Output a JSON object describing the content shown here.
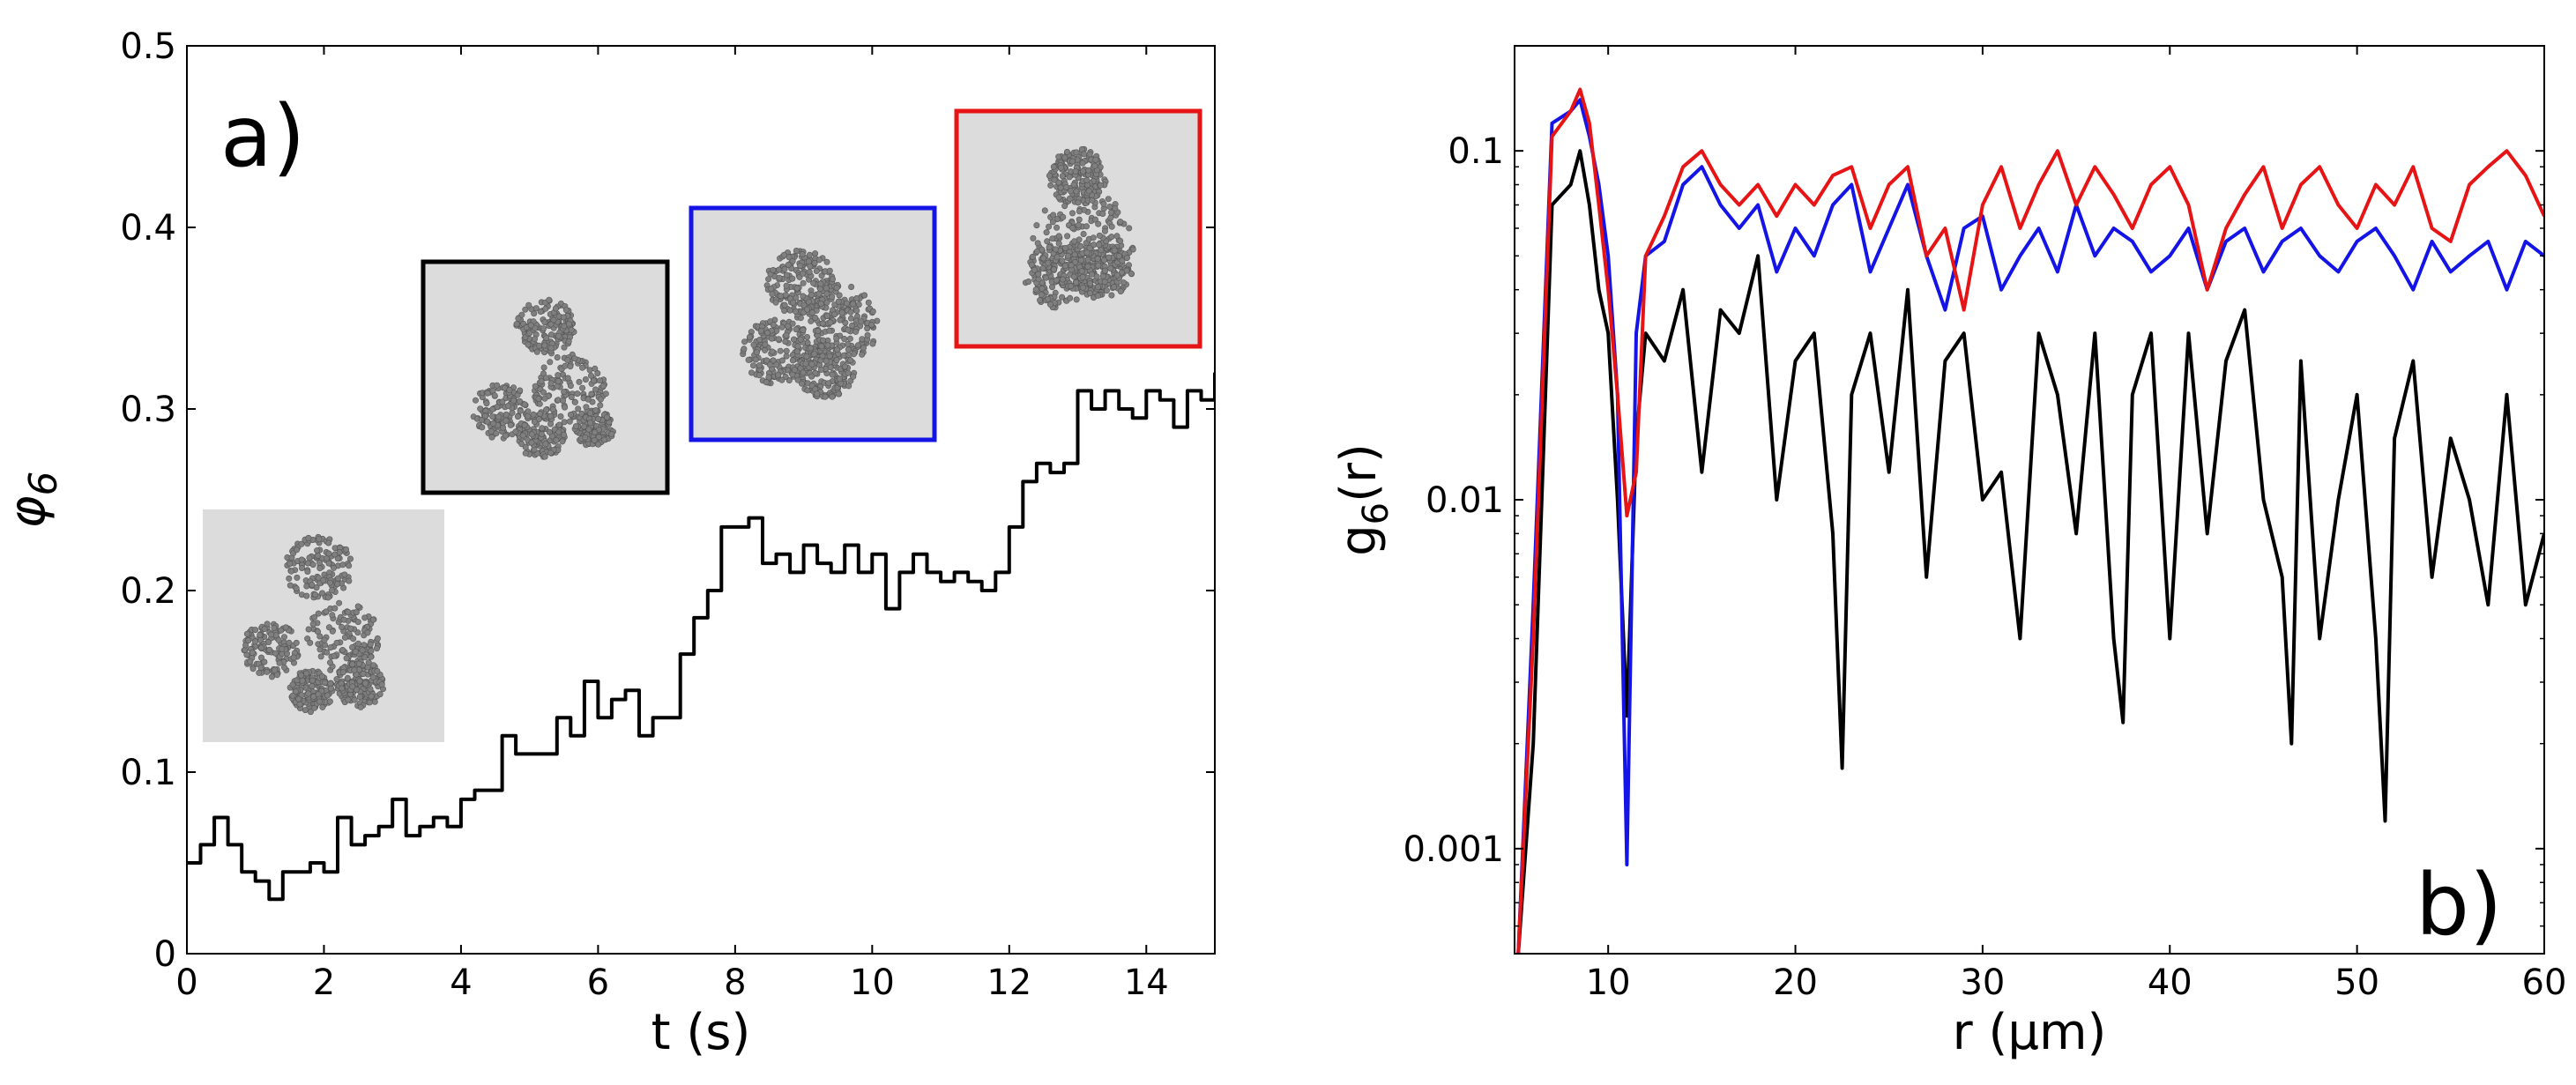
{
  "chart_data": [
    {
      "type": "line",
      "panel_label": "a)",
      "xlabel": "t (s)",
      "ylabel": "φ",
      "ylabel_sub": "6",
      "xlim": [
        0,
        15
      ],
      "ylim": [
        0,
        0.5
      ],
      "xticks": [
        0,
        2,
        4,
        6,
        8,
        10,
        12,
        14
      ],
      "yticks": [
        0,
        0.1,
        0.2,
        0.3,
        0.4,
        0.5
      ],
      "ytick_labels": [
        "0",
        "0.1",
        "0.2",
        "0.3",
        "0.4",
        "0.5"
      ],
      "grid": false,
      "colors": {
        "series": "#000000"
      },
      "series": [
        {
          "color": "#000000",
          "step": true,
          "x": [
            0,
            0.2,
            0.4,
            0.6,
            0.8,
            1.0,
            1.2,
            1.4,
            1.6,
            1.8,
            2.0,
            2.2,
            2.4,
            2.6,
            2.8,
            3.0,
            3.2,
            3.4,
            3.6,
            3.8,
            4.0,
            4.2,
            4.4,
            4.6,
            4.8,
            5.0,
            5.2,
            5.4,
            5.6,
            5.8,
            6.0,
            6.2,
            6.4,
            6.6,
            6.8,
            7.0,
            7.2,
            7.4,
            7.6,
            7.8,
            8.0,
            8.2,
            8.4,
            8.6,
            8.8,
            9.0,
            9.2,
            9.4,
            9.6,
            9.8,
            10.0,
            10.2,
            10.4,
            10.6,
            10.8,
            11.0,
            11.2,
            11.4,
            11.6,
            11.8,
            12.0,
            12.2,
            12.4,
            12.6,
            12.8,
            13.0,
            13.2,
            13.4,
            13.6,
            13.8,
            14.0,
            14.2,
            14.4,
            14.6,
            14.8,
            15.0
          ],
          "y": [
            0.05,
            0.06,
            0.075,
            0.06,
            0.045,
            0.04,
            0.03,
            0.045,
            0.045,
            0.05,
            0.045,
            0.075,
            0.06,
            0.065,
            0.07,
            0.085,
            0.065,
            0.07,
            0.075,
            0.07,
            0.085,
            0.09,
            0.09,
            0.12,
            0.11,
            0.11,
            0.11,
            0.13,
            0.12,
            0.15,
            0.13,
            0.14,
            0.145,
            0.12,
            0.13,
            0.13,
            0.165,
            0.185,
            0.2,
            0.235,
            0.235,
            0.24,
            0.215,
            0.22,
            0.21,
            0.225,
            0.215,
            0.21,
            0.225,
            0.21,
            0.22,
            0.19,
            0.21,
            0.22,
            0.21,
            0.205,
            0.21,
            0.205,
            0.2,
            0.21,
            0.235,
            0.26,
            0.27,
            0.265,
            0.27,
            0.31,
            0.3,
            0.31,
            0.3,
            0.295,
            0.31,
            0.305,
            0.29,
            0.31,
            0.305,
            0.32
          ]
        }
      ],
      "insets": [
        {
          "t": 1.2,
          "frame_color": "none",
          "fill": "#dcdcdc",
          "dot": "#7f7f7f"
        },
        {
          "t": 5.3,
          "frame_color": "#000000",
          "fill": "#dcdcdc",
          "dot": "#7f7f7f"
        },
        {
          "t": 9.1,
          "frame_color": "#1414e6",
          "fill": "#dcdcdc",
          "dot": "#7f7f7f"
        },
        {
          "t": 12.9,
          "frame_color": "#e61414",
          "fill": "#dcdcdc",
          "dot": "#7f7f7f"
        }
      ]
    },
    {
      "type": "line",
      "panel_label": "b)",
      "xlabel": "r (μm)",
      "ylabel": "g",
      "ylabel_sub": "6",
      "ylabel_suffix": "(r)",
      "xlim": [
        5,
        60
      ],
      "ylim": [
        0.0005,
        0.2
      ],
      "yscale": "log",
      "xticks": [
        10,
        20,
        30,
        40,
        50,
        60
      ],
      "yticks": [
        0.001,
        0.01,
        0.1
      ],
      "ytick_labels": [
        "0.001",
        "0.01",
        "0.1"
      ],
      "grid": false,
      "colors": {
        "black": "#000000",
        "blue": "#1414e6",
        "red": "#e61414"
      },
      "series": [
        {
          "color": "#000000",
          "x": [
            5.2,
            6.0,
            7.0,
            8.0,
            8.5,
            9.0,
            9.5,
            10.0,
            10.5,
            11.0,
            11.5,
            12.0,
            13.0,
            14.0,
            15.0,
            16.0,
            17.0,
            18.0,
            19.0,
            20.0,
            21.0,
            22.0,
            22.5,
            23.0,
            24.0,
            25.0,
            26.0,
            27.0,
            28.0,
            29.0,
            30.0,
            31.0,
            32.0,
            33.0,
            34.0,
            35.0,
            36.0,
            37.0,
            37.5,
            38.0,
            39.0,
            40.0,
            41.0,
            42.0,
            43.0,
            44.0,
            45.0,
            46.0,
            46.5,
            47.0,
            48.0,
            49.0,
            50.0,
            51.0,
            51.5,
            52.0,
            53.0,
            54.0,
            55.0,
            56.0,
            57.0,
            58.0,
            59.0,
            60.0
          ],
          "y": [
            0.0005,
            0.002,
            0.07,
            0.08,
            0.1,
            0.07,
            0.04,
            0.03,
            0.01,
            0.0024,
            0.015,
            0.03,
            0.025,
            0.04,
            0.012,
            0.035,
            0.03,
            0.05,
            0.01,
            0.025,
            0.03,
            0.008,
            0.0017,
            0.02,
            0.03,
            0.012,
            0.04,
            0.006,
            0.025,
            0.03,
            0.01,
            0.012,
            0.004,
            0.03,
            0.02,
            0.008,
            0.03,
            0.004,
            0.0023,
            0.02,
            0.03,
            0.004,
            0.03,
            0.008,
            0.025,
            0.035,
            0.01,
            0.006,
            0.002,
            0.025,
            0.004,
            0.01,
            0.02,
            0.004,
            0.0012,
            0.015,
            0.025,
            0.006,
            0.015,
            0.01,
            0.005,
            0.02,
            0.005,
            0.008
          ]
        },
        {
          "color": "#1414e6",
          "x": [
            5.2,
            6.0,
            7.0,
            8.0,
            8.5,
            9.0,
            9.5,
            10.0,
            10.5,
            11.0,
            11.5,
            12.0,
            13.0,
            14.0,
            15.0,
            16.0,
            17.0,
            18.0,
            19.0,
            20.0,
            21.0,
            22.0,
            23.0,
            24.0,
            25.0,
            26.0,
            27.0,
            28.0,
            29.0,
            30.0,
            31.0,
            32.0,
            33.0,
            34.0,
            35.0,
            36.0,
            37.0,
            38.0,
            39.0,
            40.0,
            41.0,
            42.0,
            43.0,
            44.0,
            45.0,
            46.0,
            47.0,
            48.0,
            49.0,
            50.0,
            51.0,
            52.0,
            53.0,
            54.0,
            55.0,
            56.0,
            57.0,
            58.0,
            59.0,
            60.0
          ],
          "y": [
            0.0005,
            0.005,
            0.12,
            0.13,
            0.14,
            0.11,
            0.08,
            0.05,
            0.02,
            0.0009,
            0.03,
            0.05,
            0.055,
            0.08,
            0.09,
            0.07,
            0.06,
            0.07,
            0.045,
            0.06,
            0.05,
            0.07,
            0.08,
            0.045,
            0.06,
            0.08,
            0.05,
            0.035,
            0.06,
            0.065,
            0.04,
            0.05,
            0.06,
            0.045,
            0.07,
            0.05,
            0.06,
            0.055,
            0.045,
            0.05,
            0.06,
            0.04,
            0.055,
            0.06,
            0.045,
            0.055,
            0.06,
            0.05,
            0.045,
            0.055,
            0.06,
            0.05,
            0.04,
            0.055,
            0.045,
            0.05,
            0.055,
            0.04,
            0.055,
            0.05
          ]
        },
        {
          "color": "#e61414",
          "x": [
            5.2,
            6.0,
            7.0,
            8.0,
            8.5,
            9.0,
            9.5,
            10.0,
            10.5,
            11.0,
            11.5,
            12.0,
            13.0,
            14.0,
            15.0,
            16.0,
            17.0,
            18.0,
            19.0,
            20.0,
            21.0,
            22.0,
            23.0,
            24.0,
            25.0,
            26.0,
            27.0,
            28.0,
            29.0,
            30.0,
            31.0,
            32.0,
            33.0,
            34.0,
            35.0,
            36.0,
            37.0,
            38.0,
            39.0,
            40.0,
            41.0,
            42.0,
            43.0,
            44.0,
            45.0,
            46.0,
            47.0,
            48.0,
            49.0,
            50.0,
            51.0,
            52.0,
            53.0,
            54.0,
            55.0,
            56.0,
            57.0,
            58.0,
            59.0,
            60.0
          ],
          "y": [
            0.0005,
            0.004,
            0.11,
            0.13,
            0.15,
            0.12,
            0.07,
            0.04,
            0.02,
            0.009,
            0.012,
            0.05,
            0.065,
            0.09,
            0.1,
            0.08,
            0.07,
            0.08,
            0.065,
            0.08,
            0.07,
            0.085,
            0.09,
            0.06,
            0.08,
            0.09,
            0.05,
            0.06,
            0.035,
            0.07,
            0.09,
            0.06,
            0.08,
            0.1,
            0.07,
            0.09,
            0.075,
            0.06,
            0.08,
            0.09,
            0.07,
            0.04,
            0.06,
            0.075,
            0.09,
            0.06,
            0.08,
            0.09,
            0.07,
            0.06,
            0.08,
            0.07,
            0.09,
            0.06,
            0.055,
            0.08,
            0.09,
            0.1,
            0.085,
            0.065
          ]
        }
      ]
    }
  ]
}
